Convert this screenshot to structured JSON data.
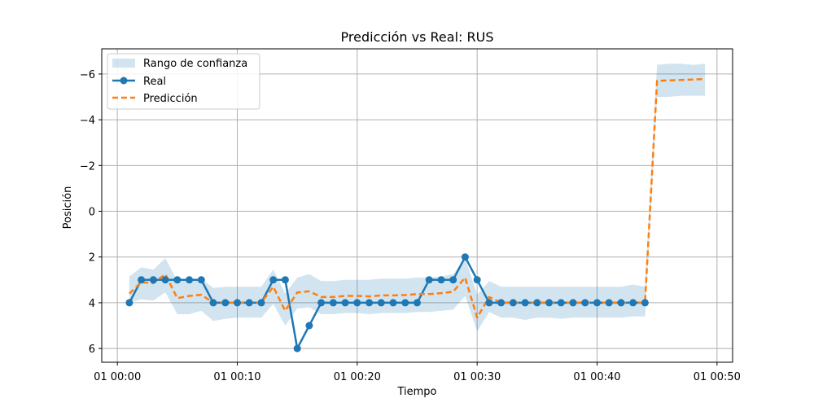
{
  "chart_data": {
    "type": "line",
    "title": "Predicción vs Real: RUS",
    "xlabel": "Tiempo",
    "ylabel": "Posición",
    "x_tick_labels": [
      "01 00:00",
      "01 00:10",
      "01 00:20",
      "01 00:30",
      "01 00:40",
      "01 00:50"
    ],
    "x_tick_values": [
      0,
      10,
      20,
      30,
      40,
      50
    ],
    "y_tick_labels": [
      "6",
      "4",
      "2",
      "0",
      "−2",
      "−4",
      "−6"
    ],
    "y_tick_values": [
      6,
      4,
      2,
      0,
      -2,
      -4,
      -6
    ],
    "ylim": [
      6.6,
      -7.1
    ],
    "xlim": [
      -1.3,
      51.3
    ],
    "y_inverted": true,
    "grid": true,
    "legend_position": "top-left",
    "legend": [
      "Rango de confianza",
      "Real",
      "Predicción"
    ],
    "colors": {
      "real": "#1f77b4",
      "prediction": "#ff7f0e",
      "band": "#1f77b4"
    },
    "series": [
      {
        "name": "Real",
        "x": [
          1,
          2,
          3,
          4,
          5,
          6,
          7,
          8,
          9,
          10,
          11,
          12,
          13,
          14,
          15,
          16,
          17,
          18,
          19,
          20,
          21,
          22,
          23,
          24,
          25,
          26,
          27,
          28,
          29,
          30,
          31,
          32,
          33,
          34,
          35,
          36,
          37,
          38,
          39,
          40,
          41,
          42,
          43,
          44
        ],
        "y": [
          4,
          3,
          3,
          3,
          3,
          3,
          3,
          4,
          4,
          4,
          4,
          4,
          3,
          3,
          6,
          5,
          4,
          4,
          4,
          4,
          4,
          4,
          4,
          4,
          4,
          3,
          3,
          3,
          2,
          3,
          4,
          4,
          4,
          4,
          4,
          4,
          4,
          4,
          4,
          4,
          4,
          4,
          4,
          4
        ]
      },
      {
        "name": "Predicción",
        "x": [
          1,
          2,
          3,
          4,
          5,
          6,
          7,
          8,
          9,
          10,
          11,
          12,
          13,
          14,
          15,
          16,
          17,
          18,
          19,
          20,
          21,
          22,
          23,
          24,
          25,
          26,
          27,
          28,
          29,
          30,
          31,
          32,
          33,
          34,
          35,
          36,
          37,
          38,
          39,
          40,
          41,
          42,
          43,
          44,
          45,
          46,
          47,
          48,
          49
        ],
        "y": [
          3.6,
          3.1,
          3.15,
          2.75,
          3.8,
          3.7,
          3.65,
          4.0,
          4.0,
          4.0,
          4.0,
          4.0,
          3.3,
          4.35,
          3.55,
          3.5,
          3.75,
          3.75,
          3.7,
          3.7,
          3.72,
          3.68,
          3.68,
          3.66,
          3.62,
          3.62,
          3.58,
          3.52,
          2.9,
          4.65,
          3.75,
          4.0,
          4.0,
          4.0,
          4.0,
          4.0,
          4.0,
          4.0,
          4.0,
          4.0,
          4.0,
          4.0,
          4.0,
          4.0,
          -5.7,
          -5.72,
          -5.74,
          -5.76,
          -5.78
        ]
      },
      {
        "name": "Rango de confianza",
        "x": [
          1,
          2,
          3,
          4,
          5,
          6,
          7,
          8,
          9,
          10,
          11,
          12,
          13,
          14,
          15,
          16,
          17,
          18,
          19,
          20,
          21,
          22,
          23,
          24,
          25,
          26,
          27,
          28,
          29,
          30,
          31,
          32,
          33,
          34,
          35,
          36,
          37,
          38,
          39,
          40,
          41,
          42,
          43,
          44,
          45,
          46,
          47,
          48,
          49
        ],
        "lower": [
          2.85,
          2.45,
          2.55,
          2.05,
          3.05,
          3.0,
          2.95,
          3.35,
          3.3,
          3.3,
          3.3,
          3.3,
          2.55,
          3.6,
          2.9,
          2.75,
          3.05,
          3.05,
          3.0,
          3.0,
          3.0,
          2.95,
          2.95,
          2.95,
          2.9,
          2.9,
          2.85,
          2.75,
          2.05,
          3.65,
          3.05,
          3.3,
          3.3,
          3.3,
          3.3,
          3.3,
          3.3,
          3.3,
          3.3,
          3.3,
          3.3,
          3.3,
          3.2,
          3.3,
          -6.4,
          -6.45,
          -6.45,
          -6.4,
          -6.45
        ],
        "upper": [
          4.0,
          3.85,
          3.9,
          3.55,
          4.5,
          4.5,
          4.35,
          4.8,
          4.7,
          4.65,
          4.65,
          4.65,
          4.05,
          5.0,
          4.25,
          4.2,
          4.5,
          4.5,
          4.45,
          4.45,
          4.5,
          4.45,
          4.45,
          4.45,
          4.4,
          4.4,
          4.35,
          4.3,
          3.7,
          5.25,
          4.4,
          4.65,
          4.65,
          4.75,
          4.65,
          4.65,
          4.7,
          4.65,
          4.65,
          4.65,
          4.65,
          4.65,
          4.6,
          4.6,
          -5.0,
          -5.0,
          -5.05,
          -5.05,
          -5.05
        ]
      }
    ]
  }
}
